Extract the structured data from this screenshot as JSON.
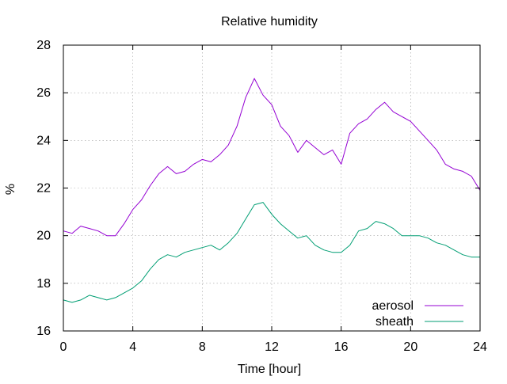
{
  "chart_data": {
    "type": "line",
    "title": "Relative humidity",
    "xlabel": "Time [hour]",
    "ylabel": "%",
    "xlim": [
      0,
      24
    ],
    "ylim": [
      16,
      28
    ],
    "xticks": [
      0,
      4,
      8,
      12,
      16,
      20,
      24
    ],
    "yticks": [
      16,
      18,
      20,
      22,
      24,
      26,
      28
    ],
    "grid": true,
    "legend_position": "bottom-right",
    "series": [
      {
        "name": "aerosol",
        "color": "#9400d3",
        "x": [
          0,
          0.5,
          1,
          1.5,
          2,
          2.5,
          3,
          3.5,
          4,
          4.5,
          5,
          5.5,
          6,
          6.5,
          7,
          7.5,
          8,
          8.5,
          9,
          9.5,
          10,
          10.5,
          11,
          11.5,
          12,
          12.5,
          13,
          13.5,
          14,
          14.5,
          15,
          15.5,
          16,
          16.5,
          17,
          17.5,
          18,
          18.5,
          19,
          19.5,
          20,
          20.5,
          21,
          21.5,
          22,
          22.5,
          23,
          23.5,
          24
        ],
        "y": [
          20.2,
          20.1,
          20.4,
          20.3,
          20.2,
          20.0,
          20.0,
          20.5,
          21.1,
          21.5,
          22.1,
          22.6,
          22.9,
          22.6,
          22.7,
          23.0,
          23.2,
          23.1,
          23.4,
          23.8,
          24.6,
          25.8,
          26.6,
          25.9,
          25.5,
          24.6,
          24.2,
          23.5,
          24.0,
          23.7,
          23.4,
          23.6,
          23.0,
          24.3,
          24.7,
          24.9,
          25.3,
          25.6,
          25.2,
          25.0,
          24.8,
          24.4,
          24.0,
          23.6,
          23.0,
          22.8,
          22.7,
          22.5,
          21.9
        ]
      },
      {
        "name": "sheath",
        "color": "#009e73",
        "x": [
          0,
          0.5,
          1,
          1.5,
          2,
          2.5,
          3,
          3.5,
          4,
          4.5,
          5,
          5.5,
          6,
          6.5,
          7,
          7.5,
          8,
          8.5,
          9,
          9.5,
          10,
          10.5,
          11,
          11.5,
          12,
          12.5,
          13,
          13.5,
          14,
          14.5,
          15,
          15.5,
          16,
          16.5,
          17,
          17.5,
          18,
          18.5,
          19,
          19.5,
          20,
          20.5,
          21,
          21.5,
          22,
          22.5,
          23,
          23.5,
          24
        ],
        "y": [
          17.3,
          17.2,
          17.3,
          17.5,
          17.4,
          17.3,
          17.4,
          17.6,
          17.8,
          18.1,
          18.6,
          19.0,
          19.2,
          19.1,
          19.3,
          19.4,
          19.5,
          19.6,
          19.4,
          19.7,
          20.1,
          20.7,
          21.3,
          21.4,
          20.9,
          20.5,
          20.2,
          19.9,
          20.0,
          19.6,
          19.4,
          19.3,
          19.3,
          19.6,
          20.2,
          20.3,
          20.6,
          20.5,
          20.3,
          20.0,
          20.0,
          20.0,
          19.9,
          19.7,
          19.6,
          19.4,
          19.2,
          19.1,
          19.1
        ]
      }
    ]
  }
}
